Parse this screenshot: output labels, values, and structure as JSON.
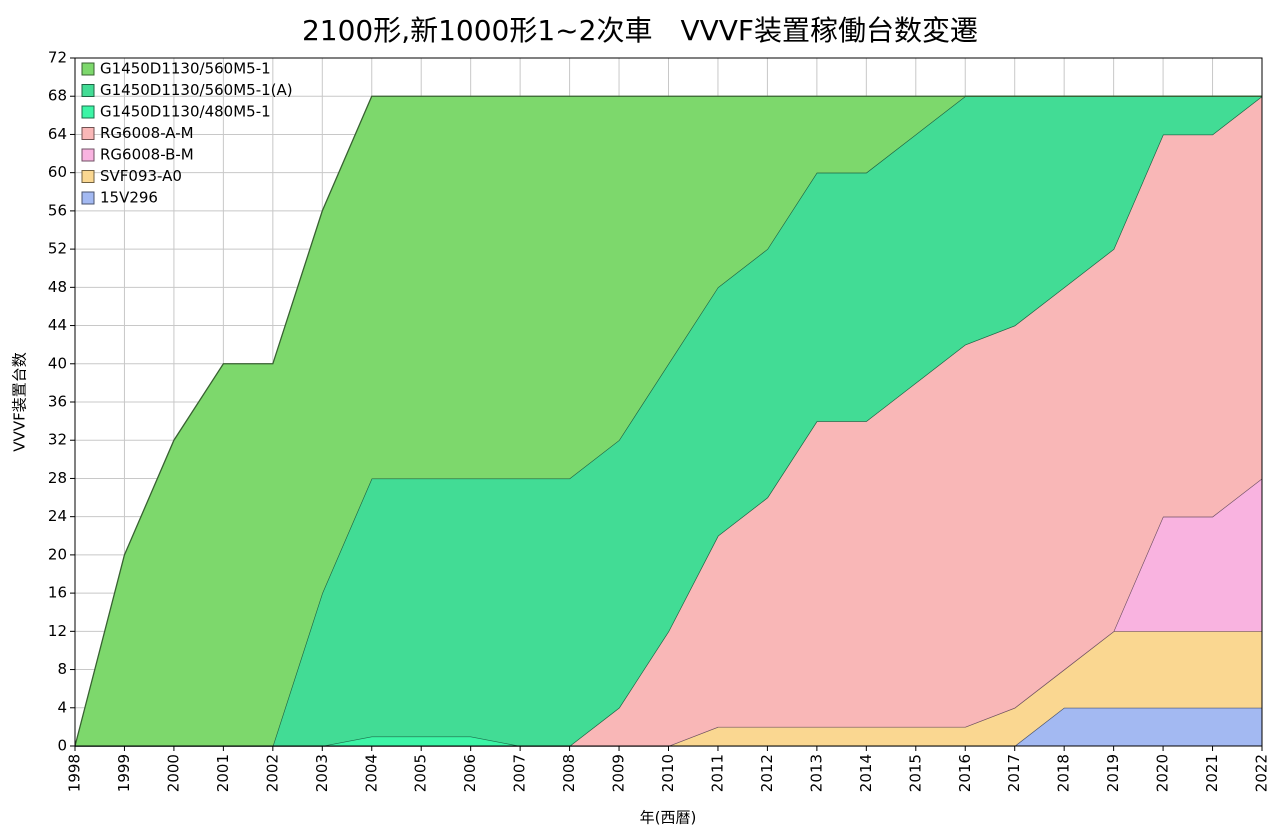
{
  "chart_data": {
    "type": "stacked_area",
    "title": "2100形,新1000形1~2次車　VVVF装置稼働台数変遷",
    "x_label": "年(西暦)",
    "y_label": "VVVF装置台数",
    "x": [
      1998,
      1999,
      2000,
      2001,
      2002,
      2003,
      2004,
      2005,
      2006,
      2007,
      2008,
      2009,
      2010,
      2011,
      2012,
      2013,
      2014,
      2015,
      2016,
      2017,
      2018,
      2019,
      2020,
      2021,
      2022
    ],
    "xlim": [
      1998,
      2022
    ],
    "xticks": [
      1998,
      1999,
      2000,
      2001,
      2002,
      2003,
      2004,
      2005,
      2006,
      2007,
      2008,
      2009,
      2010,
      2011,
      2012,
      2013,
      2014,
      2015,
      2016,
      2017,
      2018,
      2019,
      2020,
      2021,
      2022
    ],
    "ylim": [
      0,
      72
    ],
    "yticks": [
      0,
      4,
      8,
      12,
      16,
      20,
      24,
      28,
      32,
      36,
      40,
      44,
      48,
      52,
      56,
      60,
      64,
      68,
      72
    ],
    "grid": true,
    "legend": "upper left",
    "series": [
      {
        "name": "G1450D1130/560M5-1",
        "color": "#7dd86c",
        "values": [
          0,
          20,
          32,
          40,
          40,
          40,
          40,
          40,
          40,
          40,
          40,
          36,
          28,
          20,
          16,
          8,
          8,
          4,
          0,
          0,
          0,
          0,
          0,
          0,
          0
        ]
      },
      {
        "name": "G1450D1130/560M5-1(A)",
        "color": "#42dc95",
        "values": [
          0,
          0,
          0,
          0,
          0,
          16,
          27,
          27,
          27,
          28,
          28,
          28,
          28,
          26,
          26,
          26,
          26,
          26,
          26,
          24,
          20,
          16,
          4,
          4,
          0
        ]
      },
      {
        "name": "G1450D1130/480M5-1",
        "color": "#3cf5a6",
        "values": [
          0,
          0,
          0,
          0,
          0,
          0,
          1,
          1,
          1,
          0,
          0,
          0,
          0,
          0,
          0,
          0,
          0,
          0,
          0,
          0,
          0,
          0,
          0,
          0,
          0
        ]
      },
      {
        "name": "RG6008-A-M",
        "color": "#f9b7b7",
        "values": [
          0,
          0,
          0,
          0,
          0,
          0,
          0,
          0,
          0,
          0,
          0,
          4,
          12,
          20,
          24,
          32,
          32,
          36,
          40,
          40,
          40,
          40,
          40,
          40,
          40
        ]
      },
      {
        "name": "RG6008-B-M",
        "color": "#f9b3e0",
        "values": [
          0,
          0,
          0,
          0,
          0,
          0,
          0,
          0,
          0,
          0,
          0,
          0,
          0,
          0,
          0,
          0,
          0,
          0,
          0,
          0,
          0,
          0,
          12,
          12,
          16
        ]
      },
      {
        "name": "SVF093-A0",
        "color": "#fad791",
        "values": [
          0,
          0,
          0,
          0,
          0,
          0,
          0,
          0,
          0,
          0,
          0,
          0,
          0,
          2,
          2,
          2,
          2,
          2,
          2,
          4,
          4,
          8,
          8,
          8,
          8
        ]
      },
      {
        "name": "15V296",
        "color": "#a3b9f2",
        "values": [
          0,
          0,
          0,
          0,
          0,
          0,
          0,
          0,
          0,
          0,
          0,
          0,
          0,
          0,
          0,
          0,
          0,
          0,
          0,
          0,
          4,
          4,
          4,
          4,
          4
        ]
      }
    ]
  }
}
